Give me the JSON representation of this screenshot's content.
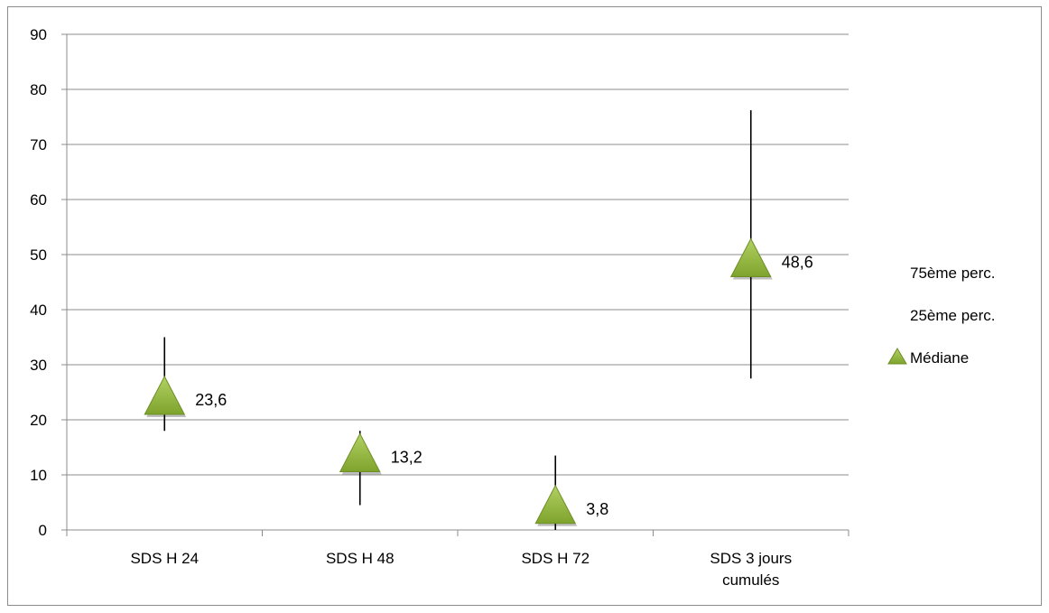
{
  "chart_data": {
    "type": "scatter",
    "title": "",
    "xlabel": "",
    "ylabel": "",
    "ylim": [
      0,
      90
    ],
    "y_ticks": [
      "0",
      "10",
      "20",
      "30",
      "40",
      "50",
      "60",
      "70",
      "80",
      "90"
    ],
    "grid": true,
    "categories": [
      [
        "SDS H 24"
      ],
      [
        "SDS H 48"
      ],
      [
        "SDS H 72"
      ],
      [
        "SDS 3 jours",
        "cumulés"
      ]
    ],
    "series": [
      {
        "name": "75ème perc.",
        "values": [
          35,
          18,
          13.5,
          76.2
        ]
      },
      {
        "name": "25ème perc.",
        "values": [
          18,
          4.5,
          0,
          27.5
        ]
      },
      {
        "name": "Médiane",
        "values": [
          23.6,
          13.2,
          3.8,
          48.6
        ],
        "labels": [
          "23,6",
          "13,2",
          "3,8",
          "48,6"
        ]
      }
    ],
    "legend_position": "right",
    "colors": {
      "median_fill": "#8fb43a",
      "median_stroke": "#6e8f28",
      "whisker": "#000000",
      "grid": "#8c8c8c"
    }
  }
}
